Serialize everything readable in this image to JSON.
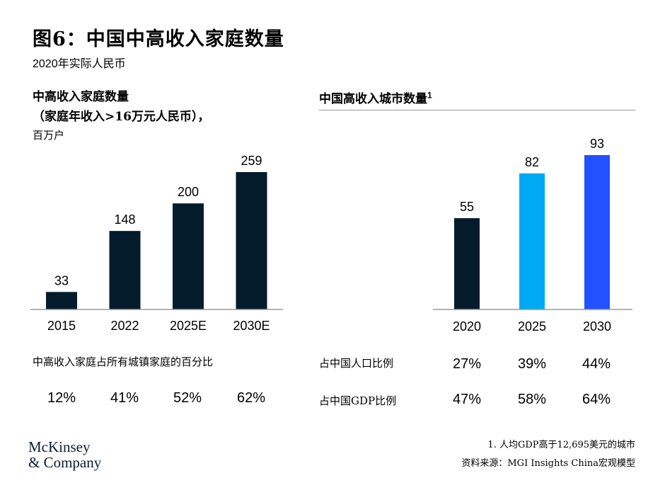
{
  "title": "图6：中国中高收入家庭数量",
  "subtitle": "2020年实际人民币",
  "left_panel": {
    "title_line1": "中高收入家庭数量",
    "title_line2": "（家庭年收入>16万元人民币），",
    "unit": "百万户",
    "stat_label": "中高收入家庭占所有城镇家庭的百分比",
    "stat_values": [
      "12%",
      "41%",
      "52%",
      "62%"
    ]
  },
  "right_panel": {
    "title": "中国高收入城市数量",
    "title_sup": "1",
    "rows": [
      {
        "label": "占中国人口比例",
        "values": [
          "27%",
          "39%",
          "44%"
        ]
      },
      {
        "label": "占中国GDP比例",
        "values": [
          "47%",
          "58%",
          "64%"
        ]
      }
    ]
  },
  "colors": {
    "dark_navy": "#051c2c",
    "light_blue": "#00a9f4",
    "bright_blue": "#2251ff",
    "axis": "#9a9a9a"
  },
  "chart_data": [
    {
      "type": "bar",
      "title": "中高收入家庭数量",
      "categories": [
        "2015",
        "2022",
        "2025E",
        "2030E"
      ],
      "values": [
        33,
        148,
        200,
        259
      ],
      "data_labels": [
        "33",
        "148",
        "200",
        "259"
      ],
      "ylabel": "百万户",
      "ylim": [
        0,
        259
      ],
      "bar_colors": [
        "#051c2c",
        "#051c2c",
        "#051c2c",
        "#051c2c"
      ],
      "grid": false
    },
    {
      "type": "bar",
      "title": "中国高收入城市数量",
      "categories": [
        "2020",
        "2025",
        "2030"
      ],
      "values": [
        55,
        82,
        93
      ],
      "data_labels": [
        "55",
        "82",
        "93"
      ],
      "ylim": [
        0,
        93
      ],
      "bar_colors": [
        "#051c2c",
        "#00a9f4",
        "#2251ff"
      ],
      "grid": false
    }
  ],
  "footnote": "1. 人均GDP高于12,695美元的城市",
  "source": "资料来源：MGI Insights China宏观模型",
  "logo": {
    "line1": "McKinsey",
    "line2": "& Company"
  }
}
